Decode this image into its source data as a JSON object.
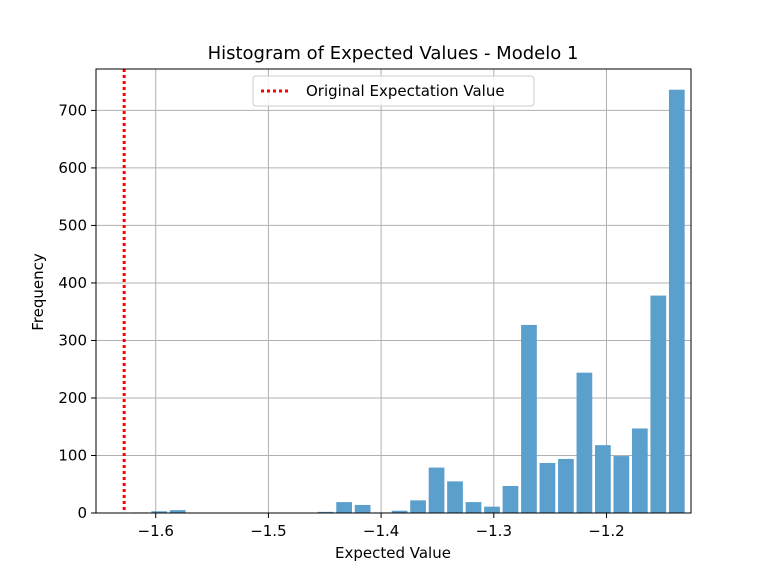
{
  "chart_data": {
    "type": "bar",
    "title": "Histogram of Expected Values - Modelo 1",
    "xlabel": "Expected Value",
    "ylabel": "Frequency",
    "xlim": [
      -1.653,
      -1.125
    ],
    "ylim": [
      0,
      772
    ],
    "xticks": [
      -1.6,
      -1.5,
      -1.4,
      -1.3,
      -1.2
    ],
    "xtick_labels": [
      "−1.6",
      "−1.5",
      "−1.4",
      "−1.3",
      "−1.2"
    ],
    "yticks": [
      0,
      100,
      200,
      300,
      400,
      500,
      600,
      700
    ],
    "ytick_labels": [
      "0",
      "100",
      "200",
      "300",
      "400",
      "500",
      "600",
      "700"
    ],
    "grid": true,
    "bar_color": "#5b9fcd",
    "bin_width": 0.01641,
    "bar_relative_width": 0.85,
    "bins": [
      {
        "x": -1.6133,
        "value": 1
      },
      {
        "x": -1.5969,
        "value": 3
      },
      {
        "x": -1.5805,
        "value": 5
      },
      {
        "x": -1.5641,
        "value": 0
      },
      {
        "x": -1.5477,
        "value": 0
      },
      {
        "x": -1.5313,
        "value": 0
      },
      {
        "x": -1.5149,
        "value": 0
      },
      {
        "x": -1.4985,
        "value": 0
      },
      {
        "x": -1.4821,
        "value": 0
      },
      {
        "x": -1.4657,
        "value": 0
      },
      {
        "x": -1.4492,
        "value": 2
      },
      {
        "x": -1.4328,
        "value": 19
      },
      {
        "x": -1.4164,
        "value": 14
      },
      {
        "x": -1.4,
        "value": 1
      },
      {
        "x": -1.3836,
        "value": 4
      },
      {
        "x": -1.3672,
        "value": 22
      },
      {
        "x": -1.3508,
        "value": 79
      },
      {
        "x": -1.3344,
        "value": 55
      },
      {
        "x": -1.318,
        "value": 19
      },
      {
        "x": -1.3016,
        "value": 11
      },
      {
        "x": -1.2852,
        "value": 47
      },
      {
        "x": -1.2688,
        "value": 327
      },
      {
        "x": -1.2524,
        "value": 87
      },
      {
        "x": -1.236,
        "value": 94
      },
      {
        "x": -1.2196,
        "value": 244
      },
      {
        "x": -1.2032,
        "value": 118
      },
      {
        "x": -1.1868,
        "value": 99
      },
      {
        "x": -1.1704,
        "value": 147
      },
      {
        "x": -1.154,
        "value": 378
      },
      {
        "x": -1.1376,
        "value": 736
      }
    ],
    "reference_line": {
      "x": -1.628,
      "label": "Original Expectation Value",
      "color": "#ff0000",
      "style": "dotted"
    },
    "legend": {
      "placement": "upper center",
      "entries": [
        "Original Expectation Value"
      ]
    }
  }
}
